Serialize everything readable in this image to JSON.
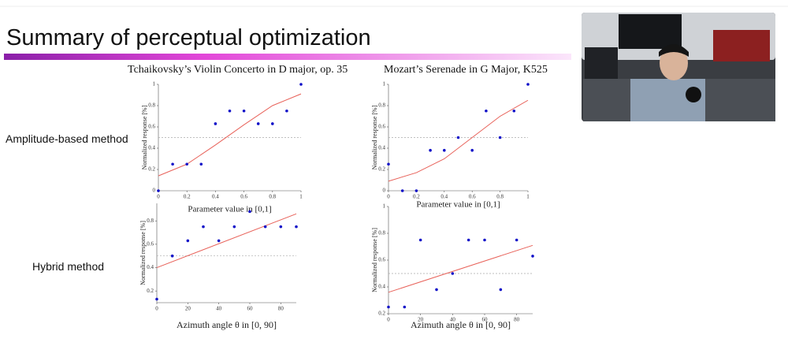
{
  "slide": {
    "title": "Summary of perceptual optimization",
    "row_labels": [
      "Amplitude-based method",
      "Hybrid method"
    ],
    "column_titles": [
      "Tchaikovsky’s Violin Concerto in D major, op. 35",
      "Mozart’s Serenade in G Major, K525"
    ]
  },
  "chart_data": [
    {
      "type": "scatter",
      "xlabel": "Parameter value in [0,1]",
      "ylabel": "Normalized response [%]",
      "x": [
        0,
        0.1,
        0.2,
        0.3,
        0.4,
        0.5,
        0.6,
        0.7,
        0.8,
        0.9,
        1
      ],
      "values": [
        0,
        0.25,
        0.25,
        0.25,
        0.63,
        0.75,
        0.75,
        0.63,
        0.63,
        0.75,
        1
      ],
      "color": "#1010c8",
      "fit_x": [
        0,
        0.2,
        0.4,
        0.6,
        0.8,
        1
      ],
      "fit_values": [
        0.14,
        0.25,
        0.43,
        0.62,
        0.8,
        0.91
      ],
      "fit_color": "#e8625a",
      "reference_line": 0.5,
      "xlim": [
        0,
        1
      ],
      "ylim": [
        0,
        1
      ],
      "xticks": [
        0,
        0.2,
        0.4,
        0.6,
        0.8,
        1
      ],
      "yticks": [
        0,
        0.2,
        0.4,
        0.6,
        0.8,
        1
      ]
    },
    {
      "type": "scatter",
      "xlabel": "Parameter value in [0,1]",
      "ylabel": "Normalized response [%]",
      "x": [
        0,
        0.1,
        0.2,
        0.3,
        0.4,
        0.5,
        0.6,
        0.7,
        0.8,
        0.9,
        1
      ],
      "values": [
        0.25,
        0,
        0,
        0.38,
        0.38,
        0.5,
        0.38,
        0.75,
        0.5,
        0.75,
        1
      ],
      "color": "#1010c8",
      "fit_x": [
        0,
        0.2,
        0.4,
        0.6,
        0.8,
        1
      ],
      "fit_values": [
        0.09,
        0.17,
        0.3,
        0.5,
        0.7,
        0.85
      ],
      "fit_color": "#e8625a",
      "reference_line": 0.5,
      "xlim": [
        0,
        1
      ],
      "ylim": [
        0,
        1
      ],
      "xticks": [
        0,
        0.2,
        0.4,
        0.6,
        0.8,
        1
      ],
      "yticks": [
        0,
        0.2,
        0.4,
        0.6,
        0.8,
        1
      ]
    },
    {
      "type": "scatter",
      "xlabel": "Azimuth angle θ in [0, 90]",
      "ylabel": "Normalized response [%]",
      "x": [
        0,
        10,
        20,
        30,
        40,
        50,
        60,
        70,
        80,
        90
      ],
      "values": [
        0.13,
        0.5,
        0.63,
        0.75,
        0.63,
        0.75,
        0.88,
        0.75,
        0.75,
        0.75
      ],
      "color": "#1010c8",
      "fit_x": [
        0,
        90
      ],
      "fit_values": [
        0.4,
        0.86
      ],
      "fit_color": "#e8625a",
      "reference_line": 0.5,
      "xlim": [
        0,
        90
      ],
      "ylim": [
        0.1,
        0.95
      ],
      "xticks": [
        0,
        20,
        40,
        60,
        80
      ],
      "yticks": [
        0.2,
        0.4,
        0.6,
        0.8
      ]
    },
    {
      "type": "scatter",
      "xlabel": "Azimuth angle θ in [0, 90]",
      "ylabel": "Normalized response [%]",
      "x": [
        0,
        10,
        20,
        30,
        40,
        50,
        60,
        70,
        80,
        90
      ],
      "values": [
        0.25,
        0.25,
        0.75,
        0.38,
        0.5,
        0.75,
        0.75,
        0.38,
        0.75,
        0.63
      ],
      "color": "#1010c8",
      "fit_x": [
        0,
        90
      ],
      "fit_values": [
        0.36,
        0.71
      ],
      "fit_color": "#e8625a",
      "reference_line": 0.5,
      "xlim": [
        0,
        90
      ],
      "ylim": [
        0.2,
        1
      ],
      "xticks": [
        0,
        20,
        40,
        60,
        80
      ],
      "yticks": [
        0.2,
        0.4,
        0.6,
        0.8,
        1
      ]
    }
  ]
}
